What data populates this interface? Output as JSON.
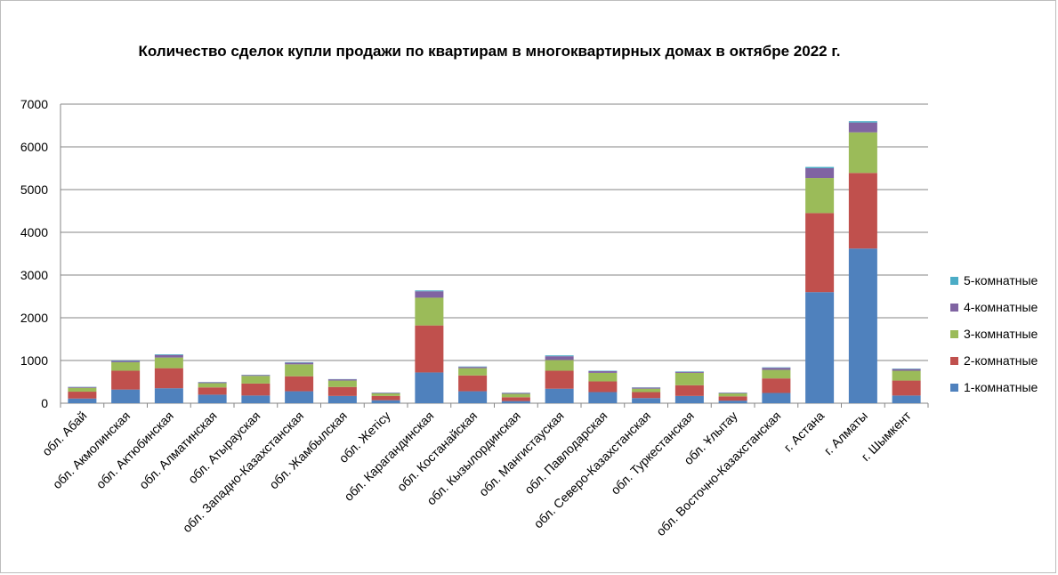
{
  "chart_data": {
    "type": "bar",
    "stacked": true,
    "title": "Количество сделок купли продажи по квартирам в многоквартирных домах в октябре 2022 г.",
    "ylim": [
      0,
      7000
    ],
    "yticks": [
      0,
      1000,
      2000,
      3000,
      4000,
      5000,
      6000,
      7000
    ],
    "grid": true,
    "legend_position": "right",
    "categories": [
      "обл. Абай",
      "обл. Акмолинская",
      "обл. Актюбинская",
      "обл. Алматинская",
      "обл. Атырауская",
      "обл. Западно-Казахстанская",
      "обл. Жамбылская",
      "обл. Жетісу",
      "обл. Карагандинская",
      "обл. Костанайская",
      "обл. Кызылординская",
      "обл. Мангистауская",
      "обл. Павлодарская",
      "обл. Северо-Казахстанская",
      "обл. Туркестанская",
      "обл. Ұлытау",
      "обл. Восточно-Казахстанская",
      "г. Астана",
      "г. Алматы",
      "г. Шымкент"
    ],
    "series": [
      {
        "name": "1-комнатные",
        "color": "#4f81bd",
        "values": [
          110,
          320,
          350,
          200,
          180,
          280,
          170,
          70,
          720,
          280,
          50,
          340,
          260,
          120,
          170,
          60,
          240,
          2600,
          3620,
          180
        ]
      },
      {
        "name": "2-комнатные",
        "color": "#c0504d",
        "values": [
          160,
          440,
          470,
          170,
          280,
          350,
          210,
          100,
          1100,
          370,
          90,
          420,
          250,
          140,
          250,
          100,
          340,
          1850,
          1770,
          350
        ]
      },
      {
        "name": "3-комнатные",
        "color": "#9bbb59",
        "values": [
          90,
          200,
          250,
          100,
          180,
          280,
          150,
          60,
          650,
          170,
          80,
          250,
          200,
          80,
          290,
          70,
          200,
          820,
          950,
          230
        ]
      },
      {
        "name": "4-комнатные",
        "color": "#8064a2",
        "values": [
          20,
          30,
          60,
          20,
          20,
          40,
          30,
          15,
          150,
          30,
          20,
          90,
          40,
          25,
          25,
          15,
          50,
          230,
          230,
          40
        ]
      },
      {
        "name": "5-комнатные",
        "color": "#4bacc6",
        "values": [
          5,
          10,
          15,
          5,
          5,
          10,
          5,
          5,
          20,
          10,
          5,
          20,
          10,
          5,
          10,
          5,
          10,
          30,
          30,
          10
        ]
      }
    ]
  }
}
